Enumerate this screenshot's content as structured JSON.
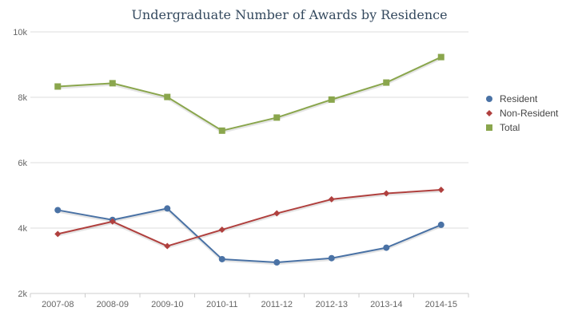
{
  "chart_data": {
    "type": "line",
    "title": "Undergraduate Number of Awards by Residence",
    "xlabel": "",
    "ylabel": "",
    "categories": [
      "2007-08",
      "2008-09",
      "2009-10",
      "2010-11",
      "2011-12",
      "2012-13",
      "2013-14",
      "2014-15"
    ],
    "ylim": [
      2000,
      10000
    ],
    "yticks": [
      2000,
      4000,
      6000,
      8000,
      10000
    ],
    "ytick_labels": [
      "2k",
      "4k",
      "6k",
      "8k",
      "10k"
    ],
    "grid": true,
    "legend_position": "right",
    "series": [
      {
        "name": "Resident",
        "marker": "circle",
        "color": "#4a72a5",
        "values": [
          4550,
          4250,
          4600,
          3050,
          2950,
          3080,
          3400,
          4100
        ]
      },
      {
        "name": "Non-Resident",
        "marker": "diamond",
        "color": "#b0403e",
        "values": [
          3820,
          4200,
          3450,
          3950,
          4450,
          4880,
          5060,
          5170
        ]
      },
      {
        "name": "Total",
        "marker": "square",
        "color": "#8aa64d",
        "values": [
          8330,
          8430,
          8010,
          6980,
          7380,
          7930,
          8450,
          9230
        ]
      }
    ]
  }
}
